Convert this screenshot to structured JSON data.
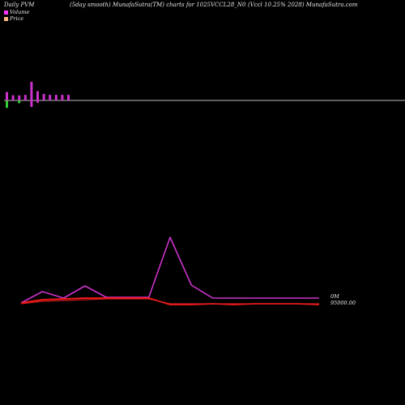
{
  "header": {
    "left": "Daily PVM",
    "center": "(5day smooth) MunafaSutra(TM) charts for 1025VCCL28_N0",
    "right": "(Vccl 10.25% 2028) MunafaSutra.com"
  },
  "legend": [
    {
      "label": "Volume",
      "color": "#ff33ff"
    },
    {
      "label": "Price",
      "color": "#ffb380"
    }
  ],
  "colors": {
    "background": "#000000",
    "baseline": "#bbbbbb",
    "volume_up": "#cc33cc",
    "volume_down": "#33cc33",
    "volume_line": "#cc33cc",
    "price_line": "#ff1a1a",
    "smooth_line": "#cc1a1a"
  },
  "chart_data": {
    "type": "line",
    "volume_bars": {
      "series": [
        {
          "name": "Volume",
          "values": [
            0.45,
            0.28,
            0.27,
            0.3,
            1.0,
            0.5,
            0.35,
            0.3,
            0.3,
            0.3,
            0.3
          ]
        },
        {
          "name": "",
          "values": [
            -0.4,
            0,
            -0.15,
            0,
            -0.35,
            -0.12,
            0,
            0,
            0,
            0,
            0
          ]
        }
      ]
    },
    "x": [
      0,
      1,
      2,
      3,
      4,
      5,
      6,
      7,
      8,
      9,
      10,
      11,
      12,
      13,
      14
    ],
    "series": [
      {
        "name": "Volume",
        "values": [
          2,
          16,
          8,
          23,
          9,
          9,
          9,
          83,
          24,
          8,
          8,
          8,
          8,
          8,
          8
        ]
      },
      {
        "name": "Price",
        "values": [
          2,
          6,
          7,
          8,
          8,
          8,
          8,
          0,
          0,
          1,
          0,
          1,
          1,
          1,
          0
        ]
      },
      {
        "name": "",
        "values": [
          1,
          4,
          5,
          6,
          7,
          7,
          7,
          1,
          1,
          1,
          1,
          1,
          1,
          1,
          1
        ]
      }
    ],
    "y_labels": {
      "volume": "0M",
      "price": "95000.00"
    }
  }
}
